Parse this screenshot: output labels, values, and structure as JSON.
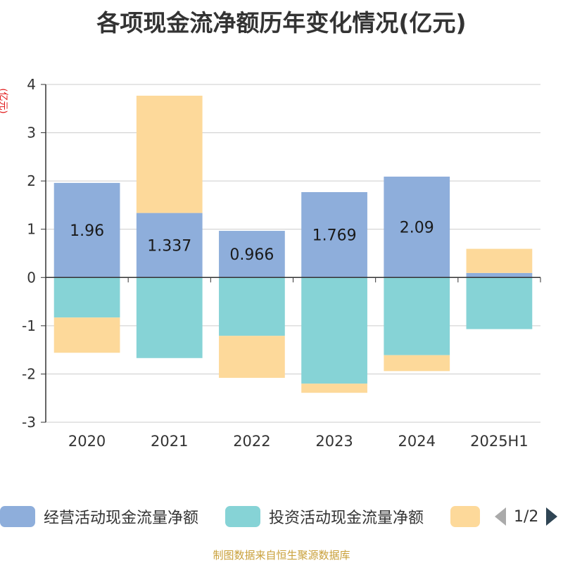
{
  "colors": {
    "operating": "#8eaedb",
    "investing": "#86d3d6",
    "financing": "#fdd99a",
    "axis": "#333333",
    "grid": "#cccccc",
    "ylabel": "#e01414",
    "footer": "#c9a03a"
  },
  "footer_text": "制图数据来自恒生聚源数据库",
  "legend": {
    "items": [
      "经营活动现金流量净额",
      "投资活动现金流量净额",
      ""
    ],
    "pager_text": "1/2",
    "prev_icon": "triangle-left-icon",
    "next_icon": "triangle-right-icon"
  },
  "chart_data": {
    "type": "bar",
    "title": "各项现金流净额历年变化情况(亿元)",
    "ylabel": "(亿元)",
    "xlabel": "",
    "categories": [
      "2020",
      "2021",
      "2022",
      "2023",
      "2024",
      "2025H1"
    ],
    "ylim": [
      -3,
      4
    ],
    "yticks": [
      "4",
      "3",
      "2",
      "1",
      "0",
      "-1",
      "-2",
      "-3"
    ],
    "grid": true,
    "legend_position": "bottom",
    "series": [
      {
        "name": "经营活动现金流量净额",
        "values": [
          1.96,
          1.337,
          0.966,
          1.769,
          2.09,
          0.094
        ],
        "labels": [
          "1.96",
          "1.337",
          "0.966",
          "1.769",
          "2.09",
          ""
        ]
      },
      {
        "name": "投资活动现金流量净额",
        "values": [
          -0.83,
          -1.67,
          -1.21,
          -2.2,
          -1.61,
          -1.07
        ]
      },
      {
        "name": "",
        "values": [
          -0.73,
          2.43,
          -0.87,
          -0.19,
          -0.33,
          0.5
        ]
      }
    ]
  }
}
